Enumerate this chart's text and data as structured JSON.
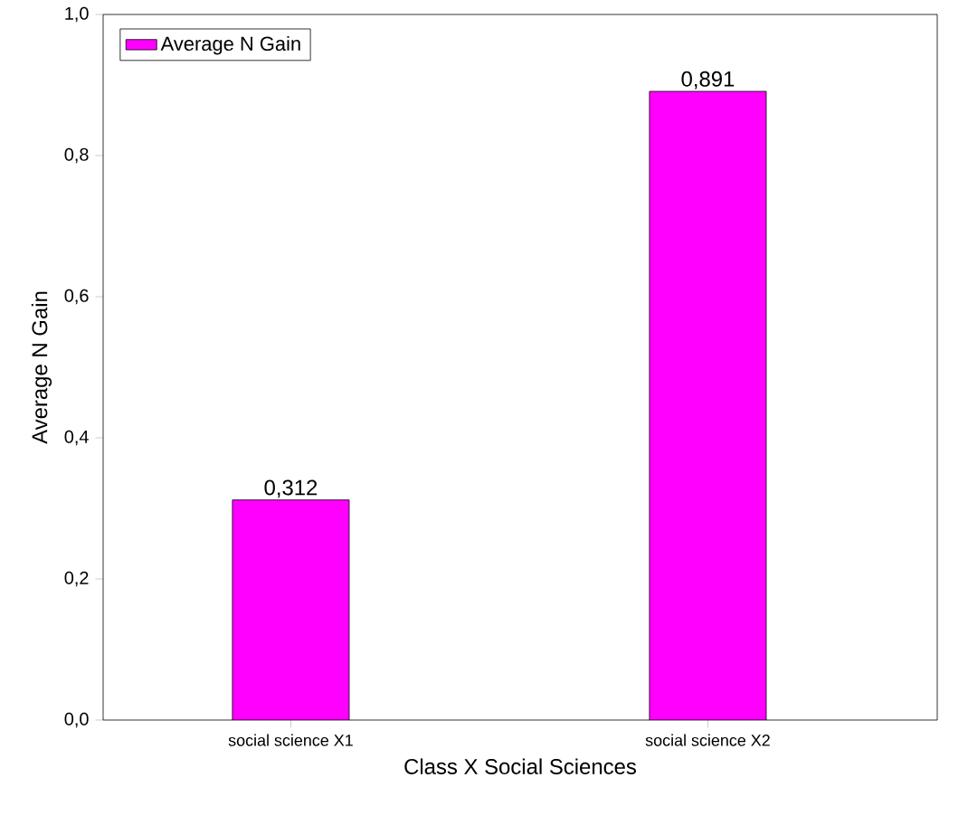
{
  "chart_data": {
    "type": "bar",
    "xlabel": "Class X Social Sciences",
    "ylabel": "Average N Gain",
    "categories": [
      "social science X1",
      "social science X2"
    ],
    "series": [
      {
        "name": "Average N Gain",
        "color": "#ff00ff",
        "values": [
          0.312,
          0.891
        ],
        "value_labels": [
          "0,312",
          "0,891"
        ]
      }
    ],
    "ylim": [
      0,
      1
    ],
    "yticks": [
      {
        "value": 0,
        "label": "0,0"
      },
      {
        "value": 0.2,
        "label": "0,2"
      },
      {
        "value": 0.4,
        "label": "0,4"
      },
      {
        "value": 0.6,
        "label": "0,6"
      },
      {
        "value": 0.8,
        "label": "0,8"
      },
      {
        "value": 1,
        "label": "1,0"
      }
    ],
    "legend": "top left",
    "grid": false
  }
}
